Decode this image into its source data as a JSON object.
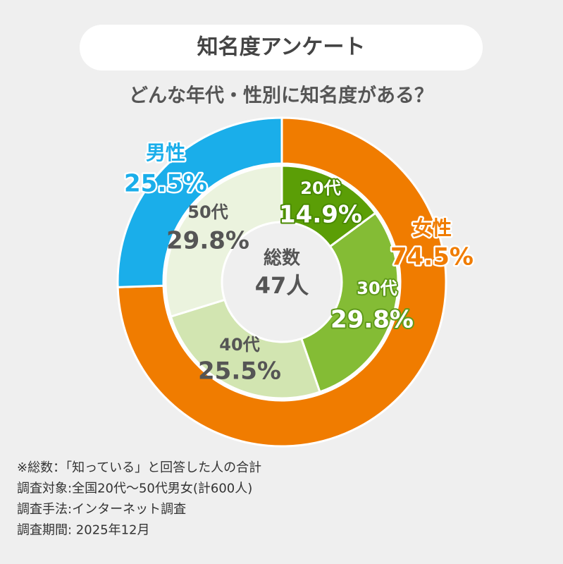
{
  "chart_data": {
    "type": "donut",
    "title": "知名度アンケート",
    "subtitle": "どんな年代・性別に知名度がある？",
    "series": [
      {
        "categories": [
          "女性",
          "男性"
        ],
        "values": [
          74.5,
          25.5
        ],
        "value_labels": [
          "74.5%",
          "25.5%"
        ],
        "colors": [
          "#f07c00",
          "#1aaeea"
        ]
      },
      {
        "categories": [
          "20代",
          "30代",
          "40代",
          "50代"
        ],
        "values": [
          14.9,
          29.8,
          25.5,
          29.8
        ],
        "value_labels": [
          "14.9%",
          "29.8%",
          "25.5%",
          "29.8%"
        ],
        "colors": [
          "#5b9e06",
          "#84bc35",
          "#d2e5b1",
          "#ebf3de"
        ]
      }
    ],
    "center_title": "総数",
    "center_value": "47人",
    "notes": [
      "※総数：「知っている」と回答した人の合計",
      "調査対象:全国20代～50代男女(計600人)",
      "調査手法:インターネット調査",
      "調査期間: 2025年12月"
    ]
  }
}
